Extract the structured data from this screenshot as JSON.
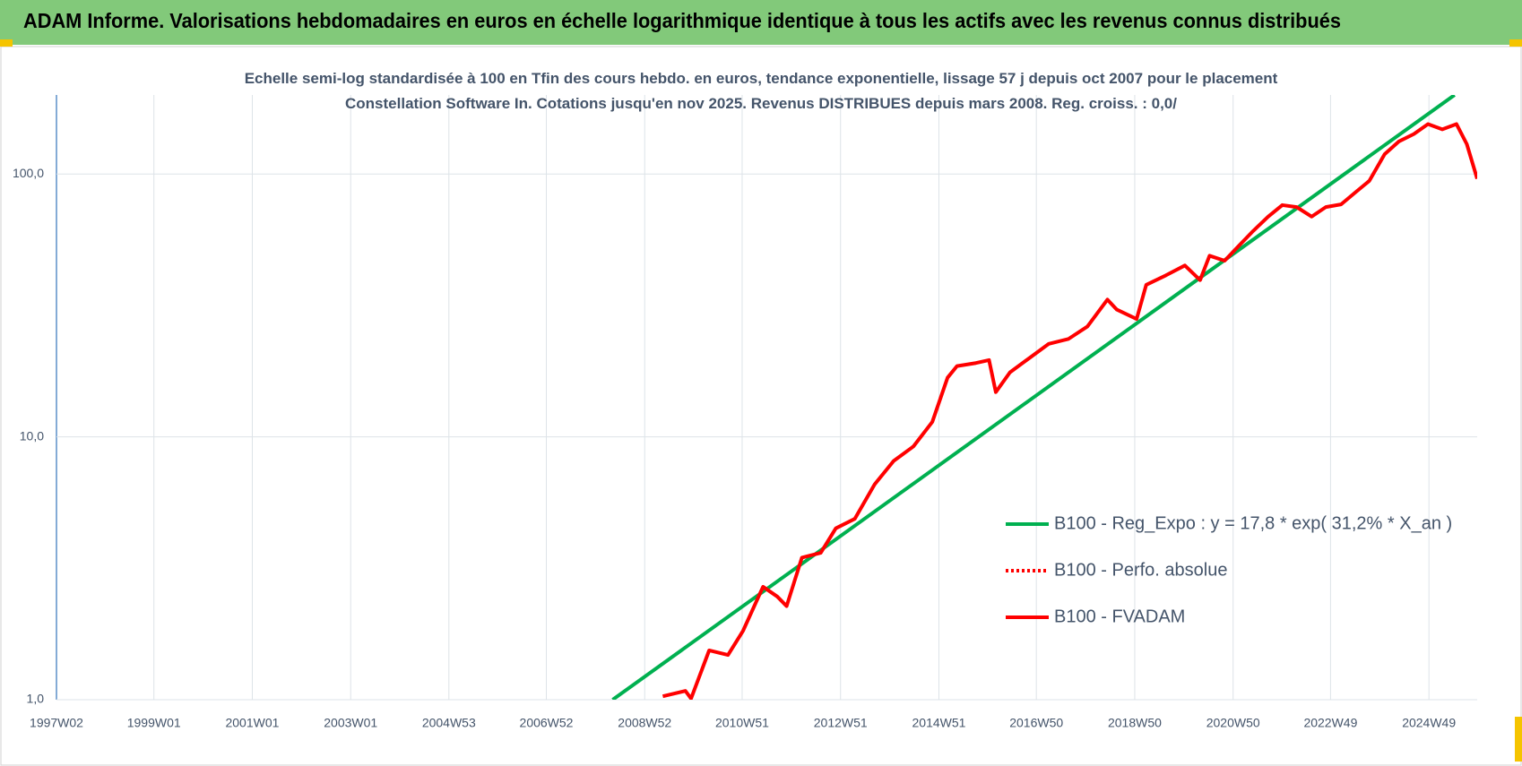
{
  "header": {
    "title": "ADAM Informe. Valorisations hebdomadaires en euros en échelle logarithmique identique à tous les actifs avec les revenus connus distribués"
  },
  "chart_data": {
    "type": "line",
    "title": "Echelle semi-log standardisée à 100 en Tfin des cours hebdo. en euros, tendance exponentielle, lissage 57 j depuis oct 2007 pour le placement Constellation Software In. Cotations jusqu'en nov 2025. Revenus DISTRIBUES depuis mars 2008. Reg. croiss. : 0,0/",
    "log_scale": true,
    "grid": true,
    "legend": "right",
    "xlim": [
      "1997W02",
      "2025W48"
    ],
    "xticks": [
      "1997W02",
      "1999W01",
      "2001W01",
      "2003W01",
      "2004W53",
      "2006W52",
      "2008W52",
      "2010W51",
      "2012W51",
      "2014W51",
      "2016W50",
      "2018W50",
      "2020W50",
      "2022W49",
      "2024W49"
    ],
    "ylim": [
      1,
      200
    ],
    "yticks": [
      {
        "value": 1,
        "label": "1,0"
      },
      {
        "value": 10,
        "label": "10,0"
      },
      {
        "value": 100,
        "label": "100,0"
      }
    ],
    "series": [
      {
        "name": "B100 - Reg_Expo : y = 17,8 * exp( 31,2% *  X_an )",
        "color": "#00b050",
        "style": "solid",
        "x": [
          "2008W18",
          "2025W24"
        ],
        "values": [
          1.0,
          200
        ]
      },
      {
        "name": "B100 - Perfo. absolue",
        "color": "#ff0000",
        "style": "dotted",
        "x": [],
        "values": []
      },
      {
        "name": "B100 - FVADAM",
        "color": "#ff0000",
        "style": "solid",
        "x": [
          "2009W19",
          "2009W43",
          "2009W49",
          "2010W16",
          "2010W36",
          "2010W52",
          "2011W21",
          "2011W36",
          "2011W46",
          "2012W10",
          "2012W30",
          "2012W46",
          "2013W14",
          "2013W35",
          "2014W03",
          "2014W24",
          "2014W44",
          "2015W08",
          "2015W18",
          "2015W38",
          "2015W52",
          "2016W07",
          "2016W22",
          "2016W43",
          "2017W11",
          "2017W32",
          "2017W52",
          "2018W21",
          "2018W31",
          "2018W52",
          "2019W10",
          "2019W31",
          "2019W51",
          "2020W15",
          "2020W25",
          "2020W41",
          "2021W04",
          "2021W19",
          "2021W35",
          "2021W50",
          "2022W13",
          "2022W29",
          "2022W44",
          "2023W08",
          "2023W23",
          "2023W38",
          "2024W02",
          "2024W17",
          "2024W33",
          "2024W48",
          "2025W11",
          "2025W26",
          "2025W37",
          "2025W48"
        ],
        "values": [
          1.03,
          1.08,
          1.01,
          1.54,
          1.48,
          1.83,
          2.69,
          2.47,
          2.27,
          3.47,
          3.62,
          4.49,
          4.88,
          6.6,
          8.1,
          9.2,
          11.4,
          16.8,
          18.6,
          19.1,
          19.6,
          14.8,
          17.6,
          20.0,
          22.6,
          23.6,
          26.3,
          33.3,
          30.5,
          28.1,
          37.9,
          41.2,
          44.9,
          39.5,
          48.9,
          46.8,
          53.4,
          60.7,
          68.9,
          76.2,
          74.9,
          68.9,
          74.9,
          76.7,
          85.1,
          94.3,
          119,
          133,
          142,
          155,
          148,
          155,
          130,
          96
        ]
      }
    ]
  }
}
